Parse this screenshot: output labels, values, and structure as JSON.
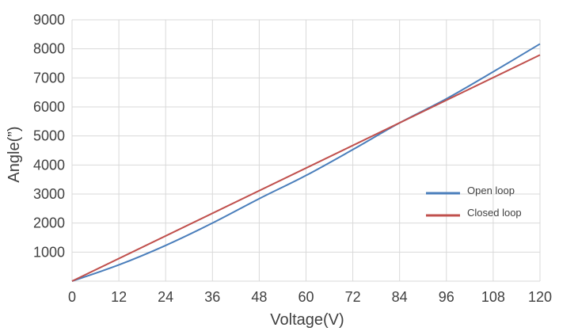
{
  "chart_data": {
    "type": "line",
    "title": "",
    "xlabel": "Voltage(V)",
    "ylabel": "Angle(”)",
    "xlim": [
      0,
      120
    ],
    "ylim": [
      0,
      9000
    ],
    "x_ticks": [
      0,
      12,
      24,
      36,
      48,
      60,
      72,
      84,
      96,
      108,
      120
    ],
    "y_ticks": [
      1000,
      2000,
      3000,
      4000,
      5000,
      6000,
      7000,
      8000,
      9000
    ],
    "grid": true,
    "legend_position": "right",
    "series": [
      {
        "name": "Open loop",
        "color": "#4a7ebb",
        "x": [
          0,
          12,
          24,
          36,
          48,
          60,
          72,
          84,
          96,
          108,
          120
        ],
        "y": [
          0,
          560,
          1230,
          2000,
          2840,
          3640,
          4530,
          5450,
          6280,
          7210,
          8170
        ]
      },
      {
        "name": "Closed loop",
        "color": "#c0504d",
        "x": [
          0,
          120
        ],
        "y": [
          0,
          7790
        ]
      }
    ]
  }
}
